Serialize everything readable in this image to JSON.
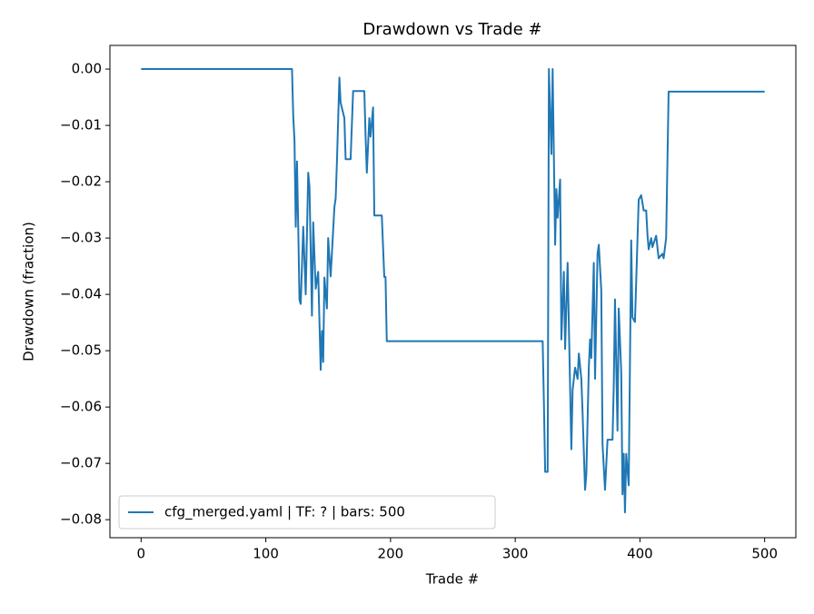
{
  "chart_data": {
    "type": "line",
    "title": "Drawdown vs Trade #",
    "xlabel": "Trade #",
    "ylabel": "Drawdown (fraction)",
    "x": [
      0,
      121,
      122,
      123,
      124,
      125,
      126,
      127,
      128,
      130,
      132,
      134,
      135,
      137,
      138,
      140,
      142,
      144,
      145,
      146,
      147,
      149,
      150,
      152,
      155,
      156,
      157,
      159,
      160,
      163,
      164,
      168,
      170,
      179,
      180,
      181,
      183,
      184,
      186,
      187,
      193,
      195,
      196,
      197,
      322,
      323,
      324,
      326,
      327,
      329,
      330,
      332,
      333,
      334,
      336,
      337,
      339,
      340,
      342,
      345,
      346,
      348,
      350,
      351,
      353,
      354,
      356,
      357,
      359,
      360,
      361,
      363,
      364,
      366,
      367,
      369,
      370,
      372,
      374,
      378,
      379,
      380,
      382,
      383,
      385,
      386,
      387,
      388,
      389,
      391,
      393,
      394,
      396,
      399,
      401,
      403,
      405,
      406,
      407,
      409,
      410,
      413,
      415,
      418,
      419,
      421,
      423,
      500
    ],
    "series": [
      {
        "name": "cfg_merged.yaml | TF: ? | bars: 500",
        "color": "#1f77b4",
        "values": [
          0,
          0,
          -0.0084,
          -0.0127,
          -0.028,
          -0.0164,
          -0.028,
          -0.041,
          -0.0417,
          -0.028,
          -0.04,
          -0.0184,
          -0.0208,
          -0.0438,
          -0.0272,
          -0.039,
          -0.036,
          -0.0534,
          -0.0465,
          -0.052,
          -0.037,
          -0.0425,
          -0.03,
          -0.0368,
          -0.0245,
          -0.023,
          -0.0167,
          -0.0015,
          -0.006,
          -0.0087,
          -0.016,
          -0.016,
          -0.0039,
          -0.0039,
          -0.0119,
          -0.0184,
          -0.0087,
          -0.012,
          -0.0068,
          -0.026,
          -0.026,
          -0.0369,
          -0.0369,
          -0.0483,
          -0.0483,
          -0.0594,
          -0.0715,
          -0.0715,
          0,
          -0.0151,
          0,
          -0.0312,
          -0.0213,
          -0.0264,
          -0.0196,
          -0.048,
          -0.036,
          -0.0497,
          -0.0344,
          -0.0675,
          -0.057,
          -0.053,
          -0.055,
          -0.0505,
          -0.055,
          -0.061,
          -0.0747,
          -0.072,
          -0.053,
          -0.048,
          -0.0513,
          -0.0344,
          -0.055,
          -0.0328,
          -0.0312,
          -0.0393,
          -0.0666,
          -0.0747,
          -0.0658,
          -0.0658,
          -0.0562,
          -0.0409,
          -0.0642,
          -0.0425,
          -0.0538,
          -0.0755,
          -0.0683,
          -0.0787,
          -0.0683,
          -0.0739,
          -0.0304,
          -0.0441,
          -0.0449,
          -0.0232,
          -0.0224,
          -0.0251,
          -0.0251,
          -0.0293,
          -0.032,
          -0.03,
          -0.0316,
          -0.0296,
          -0.0336,
          -0.0328,
          -0.0336,
          -0.03,
          -0.004,
          -0.004
        ]
      }
    ],
    "xlim": [
      -25,
      525
    ],
    "xticks": [
      0,
      100,
      200,
      300,
      400,
      500
    ],
    "ylim": [
      -0.0832,
      0.0042
    ],
    "yticks": [
      {
        "value": -0.08,
        "label": "−0.08"
      },
      {
        "value": -0.07,
        "label": "−0.07"
      },
      {
        "value": -0.06,
        "label": "−0.06"
      },
      {
        "value": -0.05,
        "label": "−0.05"
      },
      {
        "value": -0.04,
        "label": "−0.04"
      },
      {
        "value": -0.03,
        "label": "−0.03"
      },
      {
        "value": -0.02,
        "label": "−0.02"
      },
      {
        "value": -0.01,
        "label": "−0.01"
      },
      {
        "value": 0,
        "label": "0.00"
      }
    ],
    "grid": false,
    "legend": "lower left"
  }
}
